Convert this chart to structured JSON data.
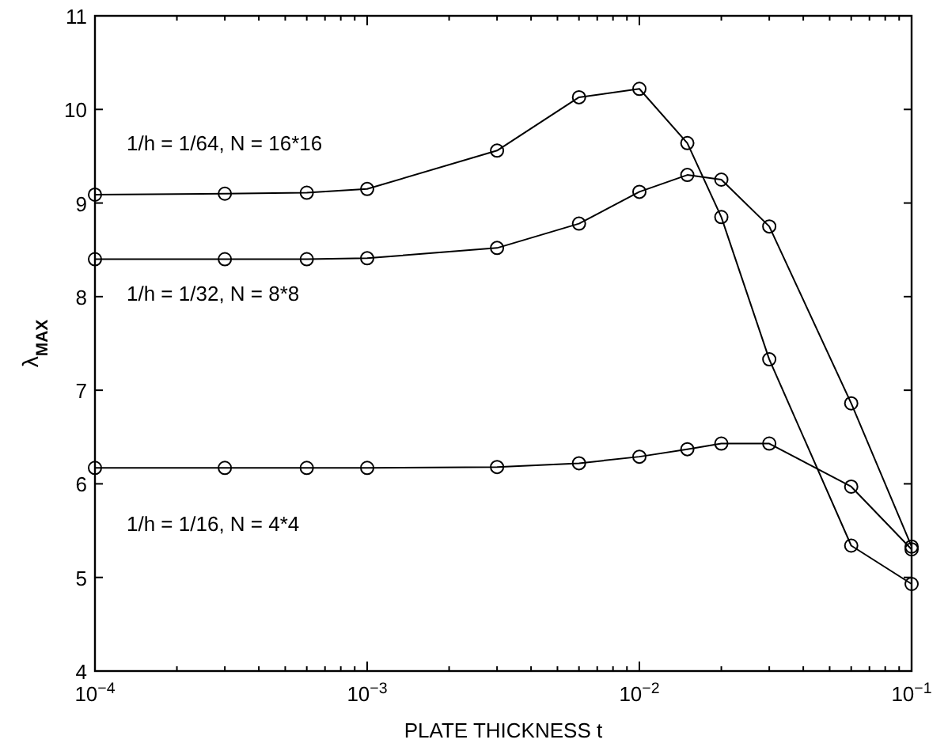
{
  "chart_data": {
    "type": "line",
    "xlabel": "PLATE THICKNESS t",
    "ylabel": "λ$_{MAX}$",
    "log": "x",
    "marker": "circle",
    "line_style": "solid",
    "grid": false,
    "x": [
      0.0001,
      0.0003,
      0.0006,
      0.001,
      0.003,
      0.006,
      0.01,
      0.015,
      0.02,
      0.03,
      0.06,
      0.1
    ],
    "xlim": [
      0.0001,
      0.1
    ],
    "xticks": [
      {
        "value": 0.0001,
        "label": "10$^{−4}$"
      },
      {
        "value": 0.0002,
        "label": null
      },
      {
        "value": 0.0003,
        "label": null
      },
      {
        "value": 0.0004,
        "label": null
      },
      {
        "value": 0.0005,
        "label": null
      },
      {
        "value": 0.0006,
        "label": null
      },
      {
        "value": 0.0007,
        "label": null
      },
      {
        "value": 0.0008,
        "label": null
      },
      {
        "value": 0.0009,
        "label": null
      },
      {
        "value": 0.001,
        "label": "10$^{−3}$"
      },
      {
        "value": 0.002,
        "label": null
      },
      {
        "value": 0.003,
        "label": null
      },
      {
        "value": 0.004,
        "label": null
      },
      {
        "value": 0.005,
        "label": null
      },
      {
        "value": 0.006,
        "label": null
      },
      {
        "value": 0.007,
        "label": null
      },
      {
        "value": 0.008,
        "label": null
      },
      {
        "value": 0.009,
        "label": null
      },
      {
        "value": 0.01,
        "label": "10$^{−2}$"
      },
      {
        "value": 0.02,
        "label": null
      },
      {
        "value": 0.03,
        "label": null
      },
      {
        "value": 0.04,
        "label": null
      },
      {
        "value": 0.05,
        "label": null
      },
      {
        "value": 0.06,
        "label": null
      },
      {
        "value": 0.07,
        "label": null
      },
      {
        "value": 0.08,
        "label": null
      },
      {
        "value": 0.09,
        "label": null
      },
      {
        "value": 0.1,
        "label": "10$^{−1}$"
      }
    ],
    "ylim": [
      4,
      11
    ],
    "yticks": [
      4,
      5,
      6,
      7,
      8,
      9,
      10,
      11
    ],
    "series": [
      {
        "name": "1/h = 1/64, N = 16*16",
        "color": "#000000",
        "values": [
          9.09,
          9.1,
          9.11,
          9.15,
          9.56,
          10.13,
          10.22,
          9.64,
          8.85,
          7.33,
          5.34,
          4.93
        ]
      },
      {
        "name": "1/h = 1/32, N = 8*8",
        "color": "#000000",
        "values": [
          8.4,
          8.4,
          8.4,
          8.41,
          8.52,
          8.78,
          9.12,
          9.3,
          9.25,
          8.75,
          6.86,
          5.33
        ]
      },
      {
        "name": "1/h = 1/16, N = 4*4",
        "color": "#000000",
        "values": [
          6.17,
          6.17,
          6.17,
          6.17,
          6.18,
          6.22,
          6.29,
          6.37,
          6.43,
          6.43,
          5.97,
          5.3
        ]
      }
    ]
  }
}
